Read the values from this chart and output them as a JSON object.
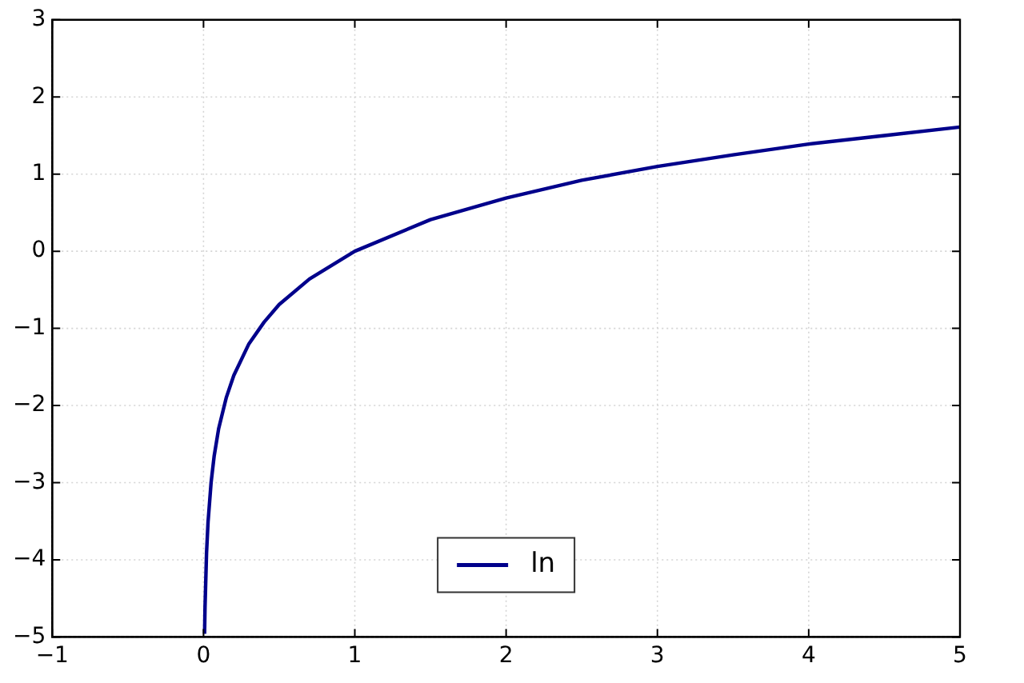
{
  "chart_data": {
    "type": "line",
    "x": [
      0.007,
      0.01,
      0.02,
      0.03,
      0.05,
      0.07,
      0.1,
      0.15,
      0.2,
      0.3,
      0.4,
      0.5,
      0.7,
      1,
      1.5,
      2,
      2.5,
      3,
      3.5,
      4,
      4.5,
      5
    ],
    "series": [
      {
        "name": "ln",
        "color": "#00008b",
        "values": [
          -4.96,
          -4.61,
          -3.91,
          -3.51,
          -3.0,
          -2.66,
          -2.3,
          -1.9,
          -1.61,
          -1.2,
          -0.92,
          -0.69,
          -0.36,
          0,
          0.41,
          0.69,
          0.92,
          1.1,
          1.25,
          1.39,
          1.5,
          1.61
        ]
      }
    ],
    "xlim": [
      -1,
      5
    ],
    "xticks": [
      -1,
      0,
      1,
      2,
      3,
      4,
      5
    ],
    "ylim": [
      -5,
      3
    ],
    "yticks": [
      -5,
      -4,
      -3,
      -2,
      -1,
      0,
      1,
      2,
      3
    ],
    "grid": true,
    "legend": "bottom",
    "marker": "none",
    "line_style": "solid"
  }
}
